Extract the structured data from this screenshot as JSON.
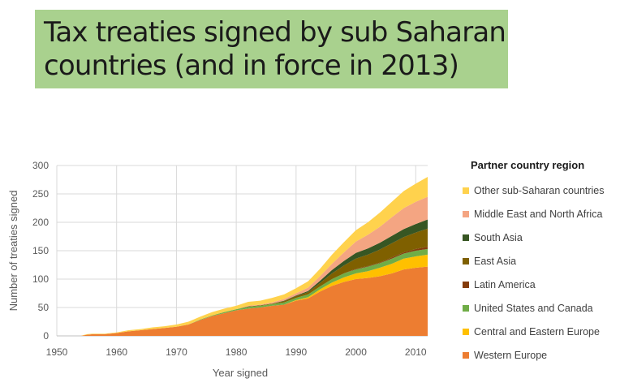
{
  "title": {
    "line1": "Tax treaties signed by sub Saharan",
    "line2": "countries (and in force in 2013)"
  },
  "chart_data": {
    "type": "area",
    "stacked": true,
    "xlabel": "Year signed",
    "ylabel": "Number of treaties signed",
    "xlim": [
      1950,
      2012
    ],
    "ylim": [
      0,
      300
    ],
    "x_ticks": [
      "1950",
      "1960",
      "1970",
      "1980",
      "1990",
      "2000",
      "2010"
    ],
    "y_ticks": [
      "0",
      "50",
      "100",
      "150",
      "200",
      "250",
      "300"
    ],
    "grid": true,
    "legend_title": "Partner country region",
    "legend_position": "right",
    "x": [
      1950,
      1954,
      1955,
      1956,
      1958,
      1960,
      1962,
      1964,
      1966,
      1968,
      1970,
      1972,
      1974,
      1976,
      1978,
      1980,
      1982,
      1984,
      1986,
      1988,
      1990,
      1992,
      1994,
      1996,
      1998,
      2000,
      2002,
      2004,
      2006,
      2008,
      2010,
      2012
    ],
    "series": [
      {
        "name": "Western Europe",
        "color": "#ed7d31",
        "values": [
          0,
          0,
          2,
          3,
          3,
          5,
          8,
          10,
          12,
          14,
          16,
          20,
          28,
          35,
          40,
          45,
          48,
          50,
          53,
          55,
          62,
          66,
          78,
          88,
          95,
          100,
          102,
          105,
          110,
          117,
          120,
          122
        ]
      },
      {
        "name": "Central and Eastern Europe",
        "color": "#ffc000",
        "values": [
          0,
          0,
          0,
          0,
          0,
          0,
          0,
          0,
          0,
          0,
          0,
          0,
          0,
          0,
          0,
          0,
          0,
          0,
          0,
          0,
          1,
          2,
          4,
          6,
          8,
          10,
          12,
          15,
          17,
          19,
          20,
          21
        ]
      },
      {
        "name": "United States and Canada",
        "color": "#70ad47",
        "values": [
          0,
          0,
          0,
          0,
          0,
          0,
          0,
          0,
          0,
          0,
          0,
          0,
          1,
          1,
          2,
          2,
          3,
          3,
          3,
          4,
          4,
          5,
          5,
          6,
          7,
          7,
          8,
          8,
          9,
          9,
          10,
          10
        ]
      },
      {
        "name": "Latin America",
        "color": "#843c0c",
        "values": [
          0,
          0,
          0,
          0,
          0,
          0,
          0,
          0,
          0,
          0,
          0,
          0,
          0,
          0,
          0,
          0,
          0,
          0,
          0,
          0,
          0,
          0,
          0,
          0,
          0,
          1,
          1,
          1,
          2,
          2,
          3,
          4
        ]
      },
      {
        "name": "East Asia",
        "color": "#7f6000",
        "values": [
          0,
          0,
          0,
          0,
          0,
          0,
          0,
          0,
          0,
          0,
          0,
          0,
          0,
          0,
          0,
          0,
          1,
          1,
          1,
          2,
          3,
          4,
          6,
          10,
          14,
          18,
          20,
          23,
          25,
          27,
          29,
          32
        ]
      },
      {
        "name": "South Asia",
        "color": "#375623",
        "values": [
          0,
          0,
          0,
          0,
          0,
          0,
          0,
          0,
          0,
          0,
          0,
          0,
          0,
          0,
          0,
          0,
          0,
          0,
          0,
          1,
          1,
          2,
          4,
          6,
          8,
          10,
          11,
          12,
          13,
          14,
          15,
          16
        ]
      },
      {
        "name": "Middle East and North Africa",
        "color": "#f4a582",
        "values": [
          0,
          0,
          0,
          0,
          0,
          0,
          0,
          0,
          0,
          0,
          0,
          0,
          0,
          0,
          0,
          0,
          1,
          1,
          2,
          3,
          4,
          6,
          8,
          11,
          15,
          20,
          24,
          28,
          33,
          37,
          39,
          40
        ]
      },
      {
        "name": "Other sub-Saharan countries",
        "color": "#ffd24d",
        "values": [
          0,
          0,
          1,
          1,
          1,
          1,
          2,
          2,
          3,
          3,
          4,
          5,
          5,
          6,
          6,
          6,
          7,
          7,
          8,
          8,
          9,
          11,
          13,
          16,
          18,
          20,
          22,
          25,
          27,
          30,
          32,
          35
        ]
      }
    ]
  }
}
